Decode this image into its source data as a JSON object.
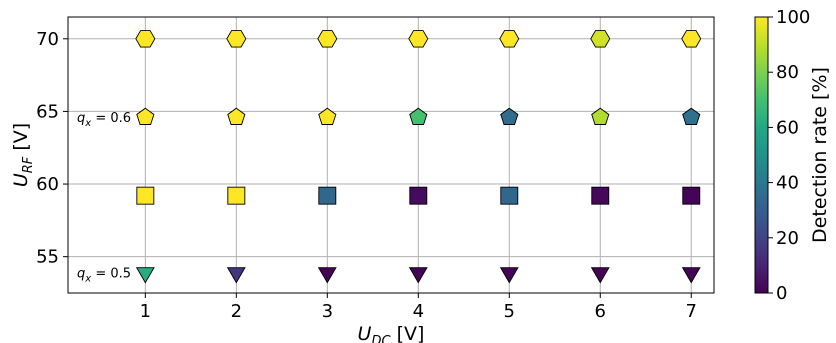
{
  "chart_data": {
    "type": "scatter",
    "title": "",
    "xlabel": {
      "main": "U",
      "sub": "DC",
      "unit": " [V]"
    },
    "ylabel": {
      "main": "U",
      "sub": "RF",
      "unit": " [V]"
    },
    "xlim": [
      0.15,
      7.25
    ],
    "ylim": [
      52.5,
      71.5
    ],
    "xticks": [
      "1",
      "2",
      "3",
      "4",
      "5",
      "6",
      "7"
    ],
    "yticks": [
      "55",
      "60",
      "65",
      "70"
    ],
    "grid": true,
    "colorbar": {
      "label": "Detection rate [%]",
      "range": [
        0,
        100
      ],
      "ticks": [
        "0",
        "20",
        "40",
        "60",
        "80",
        "100"
      ],
      "colormap": "viridis"
    },
    "annotations": [
      {
        "prefix": "q",
        "sub": "x",
        "suffix": " = 0.6",
        "y": 64.6
      },
      {
        "prefix": "q",
        "sub": "x",
        "suffix": " = 0.5",
        "y": 53.9
      }
    ],
    "series": [
      {
        "marker": "hexagon",
        "y": 70.0,
        "x": [
          1,
          2,
          3,
          4,
          5,
          6,
          7
        ],
        "detection_rate": [
          100,
          100,
          100,
          100,
          100,
          93,
          100
        ]
      },
      {
        "marker": "pentagon",
        "y": 64.6,
        "x": [
          1,
          2,
          3,
          4,
          5,
          6,
          7
        ],
        "detection_rate": [
          100,
          100,
          100,
          70,
          35,
          88,
          37
        ]
      },
      {
        "marker": "square",
        "y": 59.2,
        "x": [
          1,
          2,
          3,
          4,
          5,
          6,
          7
        ],
        "detection_rate": [
          100,
          100,
          33,
          3,
          33,
          2,
          1
        ]
      },
      {
        "marker": "triangle-down",
        "y": 53.9,
        "x": [
          1,
          2,
          3,
          4,
          5,
          6,
          7
        ],
        "detection_rate": [
          62,
          15,
          1,
          1,
          1,
          1,
          1
        ]
      }
    ]
  }
}
